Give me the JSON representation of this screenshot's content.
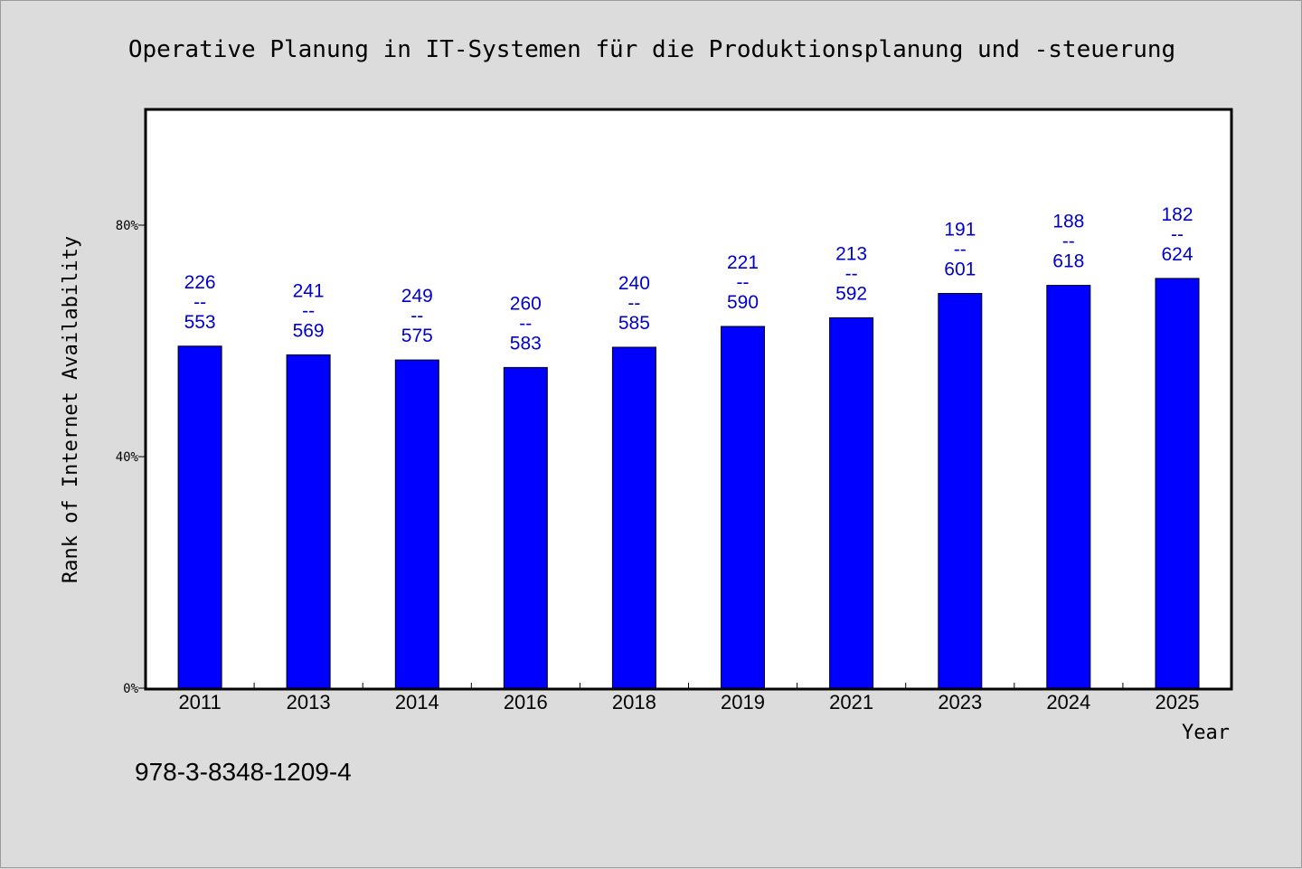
{
  "chart_data": {
    "type": "bar",
    "title": "Operative Planung in IT-Systemen für die Produktionsplanung und -steuerung",
    "xlabel": "Year",
    "ylabel": "Rank of Internet Availability",
    "categories": [
      "2011",
      "2013",
      "2014",
      "2016",
      "2018",
      "2019",
      "2021",
      "2023",
      "2024",
      "2025"
    ],
    "series": [
      {
        "values": [
          59.1,
          57.6,
          56.7,
          55.4,
          58.9,
          62.5,
          64.0,
          68.2,
          69.6,
          70.8
        ],
        "color": "#0000ff",
        "labels": [
          [
            "226",
            "553"
          ],
          [
            "241",
            "569"
          ],
          [
            "249",
            "575"
          ],
          [
            "260",
            "583"
          ],
          [
            "240",
            "585"
          ],
          [
            "221",
            "590"
          ],
          [
            "213",
            "592"
          ],
          [
            "191",
            "601"
          ],
          [
            "188",
            "618"
          ],
          [
            "182",
            "624"
          ]
        ]
      }
    ],
    "label_separator": "--",
    "ylim": [
      0,
      100
    ],
    "yticks": [
      0,
      40,
      80
    ],
    "ytick_labels": [
      "0%",
      "40%",
      "80%"
    ],
    "grid": false,
    "label_color": "#0000cc"
  },
  "footer": {
    "isbn": "978-3-8348-1209-4"
  }
}
